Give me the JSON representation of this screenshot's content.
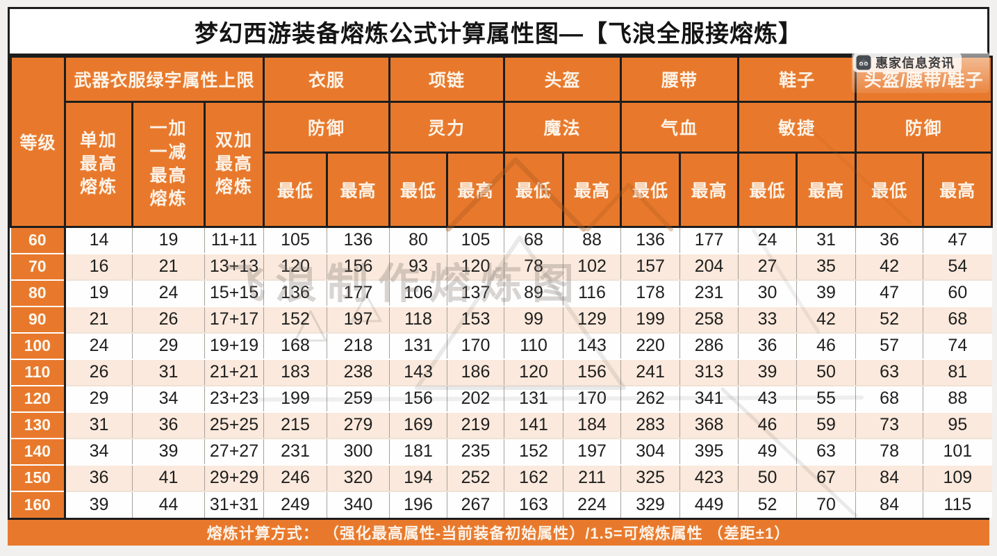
{
  "chart_data": {
    "type": "table",
    "title": "梦幻西游装备熔炼公式计算属性图—【飞浪全服接熔炼】",
    "level_header": "等级",
    "groups": [
      {
        "label": "武器衣服绿字属性上限",
        "sub": [
          "单加\n最高\n熔炼",
          "一加\n一减\n最高\n熔炼",
          "双加\n最高\n熔炼"
        ]
      },
      {
        "label": "衣服",
        "attr": "防御"
      },
      {
        "label": "项链",
        "attr": "灵力"
      },
      {
        "label": "头盔",
        "attr": "魔法"
      },
      {
        "label": "腰带",
        "attr": "气血"
      },
      {
        "label": "鞋子",
        "attr": "敏捷"
      },
      {
        "label": "头盔/腰带/鞋子",
        "attr": "防御"
      }
    ],
    "min_label": "最低",
    "max_label": "最高",
    "rows": [
      {
        "level": "60",
        "values": [
          "14",
          "19",
          "11+11",
          "105",
          "136",
          "80",
          "105",
          "68",
          "88",
          "136",
          "177",
          "24",
          "31",
          "36",
          "47"
        ]
      },
      {
        "level": "70",
        "values": [
          "16",
          "21",
          "13+13",
          "120",
          "156",
          "93",
          "120",
          "78",
          "102",
          "157",
          "204",
          "27",
          "35",
          "42",
          "54"
        ]
      },
      {
        "level": "80",
        "values": [
          "19",
          "24",
          "15+15",
          "136",
          "177",
          "106",
          "137",
          "89",
          "116",
          "178",
          "231",
          "30",
          "39",
          "47",
          "60"
        ]
      },
      {
        "level": "90",
        "values": [
          "21",
          "26",
          "17+17",
          "152",
          "197",
          "118",
          "153",
          "99",
          "129",
          "199",
          "258",
          "33",
          "42",
          "52",
          "68"
        ]
      },
      {
        "level": "100",
        "values": [
          "24",
          "29",
          "19+19",
          "168",
          "218",
          "131",
          "170",
          "110",
          "143",
          "220",
          "286",
          "36",
          "46",
          "57",
          "74"
        ]
      },
      {
        "level": "110",
        "values": [
          "26",
          "31",
          "21+21",
          "183",
          "238",
          "143",
          "186",
          "120",
          "156",
          "241",
          "313",
          "39",
          "50",
          "63",
          "81"
        ]
      },
      {
        "level": "120",
        "values": [
          "29",
          "34",
          "23+23",
          "199",
          "259",
          "156",
          "202",
          "131",
          "170",
          "262",
          "341",
          "43",
          "55",
          "68",
          "88"
        ]
      },
      {
        "level": "130",
        "values": [
          "31",
          "36",
          "25+25",
          "215",
          "279",
          "169",
          "219",
          "141",
          "184",
          "283",
          "368",
          "46",
          "59",
          "73",
          "95"
        ]
      },
      {
        "level": "140",
        "values": [
          "34",
          "39",
          "27+27",
          "231",
          "300",
          "181",
          "235",
          "152",
          "197",
          "304",
          "395",
          "49",
          "63",
          "78",
          "101"
        ]
      },
      {
        "level": "150",
        "values": [
          "36",
          "41",
          "29+29",
          "246",
          "320",
          "194",
          "252",
          "162",
          "211",
          "325",
          "423",
          "50",
          "67",
          "84",
          "109"
        ]
      },
      {
        "level": "160",
        "values": [
          "39",
          "44",
          "31+31",
          "249",
          "340",
          "196",
          "267",
          "163",
          "224",
          "329",
          "449",
          "52",
          "70",
          "84",
          "115"
        ]
      }
    ],
    "footer": "熔炼计算方式： （强化最高属性-当前装备初始属性）/1.5=可熔炼属性 （差距±1）"
  },
  "watermarks": {
    "badge_text": "惠家信息资讯",
    "badge_icon": "robot-icon",
    "center_text": "飞浪制作熔炼图"
  },
  "colors": {
    "accent_orange": "#E8792C",
    "row_peach": "#FAE9DC",
    "border_dark": "#1D1D1D",
    "page_background": "#F2F0EE"
  }
}
